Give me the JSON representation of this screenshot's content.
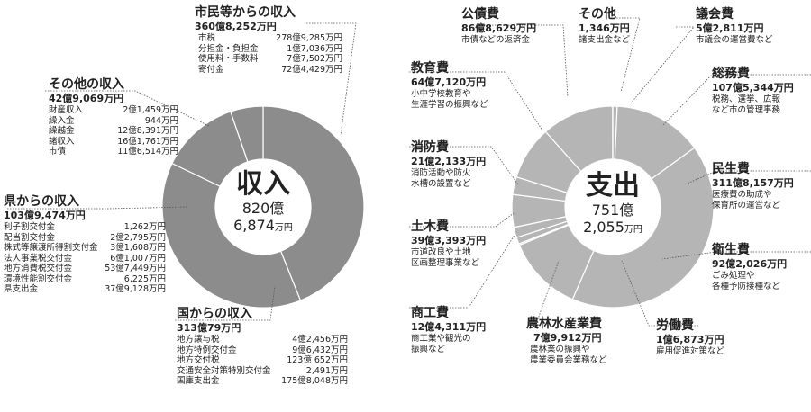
{
  "colors": {
    "revenue": "#8c8c8c",
    "expense": "#b5b5b5",
    "separator": "#ffffff",
    "leader": "#555555"
  },
  "chart_data": [
    {
      "type": "pie",
      "title": "",
      "center_label": "収入",
      "center_total_oku": "820億",
      "center_total_man": "6,874",
      "unit": "万円",
      "slices": [
        {
          "label": "市民等からの収入",
          "amount": "360億8,252万円",
          "value": 3608252
        },
        {
          "label": "国からの収入",
          "amount": "313億79万円",
          "value": 3130079
        },
        {
          "label": "県からの収入",
          "amount": "103億9,474万円",
          "value": 1039474
        },
        {
          "label": "その他の収入",
          "amount": "42億9,069万円",
          "value": 429069
        }
      ]
    },
    {
      "type": "pie",
      "title": "",
      "center_label": "支出",
      "center_total_oku": "751億",
      "center_total_man": "2,055",
      "unit": "万円",
      "slices": [
        {
          "label": "議会費",
          "amount": "5億2,811万円",
          "value": 52811
        },
        {
          "label": "総務費",
          "amount": "107億5,344万円",
          "value": 1075344
        },
        {
          "label": "民生費",
          "amount": "311億8,157万円",
          "value": 3118157
        },
        {
          "label": "衛生費",
          "amount": "92億2,026万円",
          "value": 922026
        },
        {
          "label": "労働費",
          "amount": "1億6,873万円",
          "value": 16873
        },
        {
          "label": "農林水産業費",
          "amount": "7億9,912万円",
          "value": 79912
        },
        {
          "label": "商工費",
          "amount": "12億4,311万円",
          "value": 124311
        },
        {
          "label": "土木費",
          "amount": "39億3,393万円",
          "value": 393393
        },
        {
          "label": "消防費",
          "amount": "21億2,133万円",
          "value": 212133
        },
        {
          "label": "教育費",
          "amount": "64億7,120万円",
          "value": 647120
        },
        {
          "label": "公債費",
          "amount": "86億8,629万円",
          "value": 868629
        },
        {
          "label": "その他",
          "amount": "1,346万円",
          "value": 1346
        }
      ]
    }
  ],
  "revenue": {
    "shimin": {
      "title": "市民等からの収入",
      "amount": "360億8,252万円",
      "items": [
        {
          "k": "市税",
          "v": "278億9,285万円"
        },
        {
          "k": "分担金・負担金",
          "v": "1億7,036万円"
        },
        {
          "k": "使用料・手数料",
          "v": "7億7,502万円"
        },
        {
          "k": "寄付金",
          "v": "72億4,429万円"
        }
      ]
    },
    "sonota": {
      "title": "その他の収入",
      "amount": "42億9,069万円",
      "items": [
        {
          "k": "財産収入",
          "v": "2億1,459万円"
        },
        {
          "k": "繰入金",
          "v": "944万円"
        },
        {
          "k": "繰越金",
          "v": "12億8,391万円"
        },
        {
          "k": "諸収入",
          "v": "16億1,761万円"
        },
        {
          "k": "市債",
          "v": "11億6,514万円"
        }
      ]
    },
    "ken": {
      "title": "県からの収入",
      "amount": "103億9,474万円",
      "items": [
        {
          "k": "利子割交付金",
          "v": "1,262万円"
        },
        {
          "k": "配当割交付金",
          "v": "2億2,795万円"
        },
        {
          "k": "株式等譲渡所得割交付金",
          "v": "3億1,608万円"
        },
        {
          "k": "法人事業税交付金",
          "v": "6億1,007万円"
        },
        {
          "k": "地方消費税交付金",
          "v": "53億7,449万円"
        },
        {
          "k": "環境性能割交付金",
          "v": "6,225万円"
        },
        {
          "k": "県支出金",
          "v": "37億9,128万円"
        }
      ]
    },
    "kuni": {
      "title": "国からの収入",
      "amount": "313億79万円",
      "items": [
        {
          "k": "地方譲与税",
          "v": "4億2,456万円"
        },
        {
          "k": "地方特例交付金",
          "v": "9億6,432万円"
        },
        {
          "k": "地方交付税",
          "v": "123億 652万円"
        },
        {
          "k": "交通安全対策特別交付金",
          "v": "2,491万円"
        },
        {
          "k": "国庫支出金",
          "v": "175億8,048万円"
        }
      ]
    }
  },
  "expense": {
    "kosai": {
      "title": "公債費",
      "amount": "86億8,629万円",
      "desc": [
        "市債などの返済金"
      ]
    },
    "sonota": {
      "title": "その他",
      "amount": "1,346万円",
      "desc": [
        "諸支出金など"
      ]
    },
    "gikai": {
      "title": "議会費",
      "amount": "5億2,811万円",
      "desc": [
        "市議会の運営費など"
      ]
    },
    "kyoiku": {
      "title": "教育費",
      "amount": "64億7,120万円",
      "desc": [
        "小中学校教育や",
        "生涯学習の振興など"
      ]
    },
    "somu": {
      "title": "総務費",
      "amount": "107億5,344万円",
      "desc": [
        "税務、選挙、広報",
        "など市の管理事務"
      ]
    },
    "shobo": {
      "title": "消防費",
      "amount": "21億2,133万円",
      "desc": [
        "消防活動や防火",
        "水槽の設置など"
      ]
    },
    "minsei": {
      "title": "民生費",
      "amount": "311億8,157万円",
      "desc": [
        "医療費の助成や",
        "保育所の運営など"
      ]
    },
    "doboku": {
      "title": "土木費",
      "amount": "39億3,393万円",
      "desc": [
        "市道改良や土地",
        "区画整理事業など"
      ]
    },
    "eisei": {
      "title": "衛生費",
      "amount": "92億2,026万円",
      "desc": [
        "ごみ処理や",
        "各種予防接種など"
      ]
    },
    "shoko": {
      "title": "商工費",
      "amount": "12億4,311万円",
      "desc": [
        "商工業や観光の",
        "振興など"
      ]
    },
    "norin": {
      "title": "農林水産業費",
      "amount": "7億9,912万円",
      "desc": [
        "農林業の振興や",
        "農業委員会業務など"
      ]
    },
    "rodo": {
      "title": "労働費",
      "amount": "1億6,873万円",
      "desc": [
        "雇用促進対策など"
      ]
    }
  }
}
